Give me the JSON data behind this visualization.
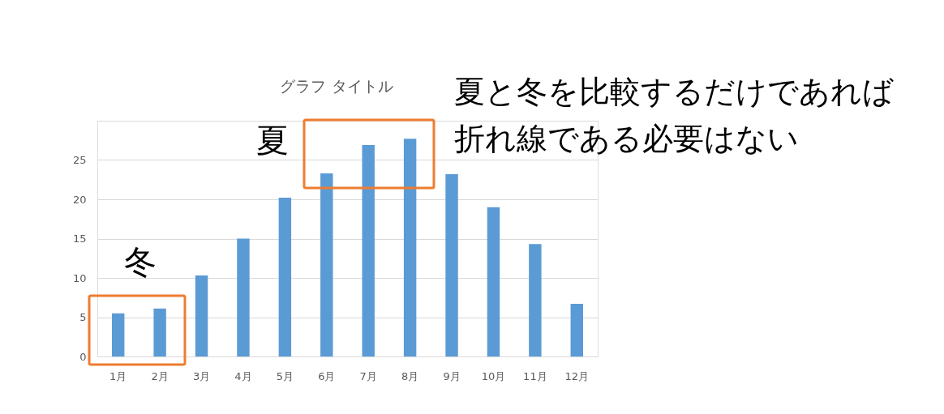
{
  "chart_data": {
    "type": "bar",
    "title": "グラフ タイトル",
    "categories": [
      "1月",
      "2月",
      "3月",
      "4月",
      "5月",
      "6月",
      "7月",
      "8月",
      "9月",
      "10月",
      "11月",
      "12月"
    ],
    "values": [
      5.5,
      6.1,
      10.3,
      15.0,
      20.2,
      23.3,
      26.9,
      27.7,
      23.2,
      19.0,
      14.3,
      6.7
    ],
    "color": "#5b9bd5",
    "ylim": [
      0,
      30
    ],
    "yticks": [
      0,
      5,
      10,
      15,
      20,
      25,
      {
        "value": 30,
        "label": null
      }
    ],
    "grid": "y",
    "annotations": [
      "夏",
      "冬",
      "夏と冬を比較するだけであれば",
      "折れ線である必要はない"
    ]
  }
}
